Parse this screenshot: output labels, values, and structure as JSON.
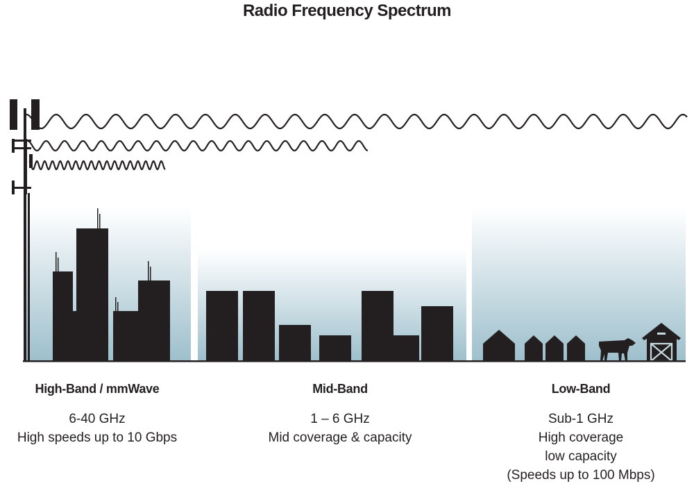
{
  "title": "Radio Frequency Spectrum",
  "bands": [
    {
      "name": "High-Band / mmWave",
      "lines": [
        "6-40 GHz",
        "High speeds up to 10 Gbps"
      ]
    },
    {
      "name": "Mid-Band",
      "lines": [
        "1 – 6 GHz",
        "Mid coverage & capacity"
      ]
    },
    {
      "name": "Low-Band",
      "lines": [
        "Sub-1 GHz",
        "High coverage",
        "low capacity",
        "(Speeds up to 100 Mbps)"
      ]
    }
  ],
  "colors": {
    "ink": "#231f20",
    "sky": "#9dbfcc"
  },
  "icons": [
    "cell-tower-icon",
    "city-skyline-icon",
    "house-icon",
    "cow-icon",
    "barn-icon"
  ]
}
